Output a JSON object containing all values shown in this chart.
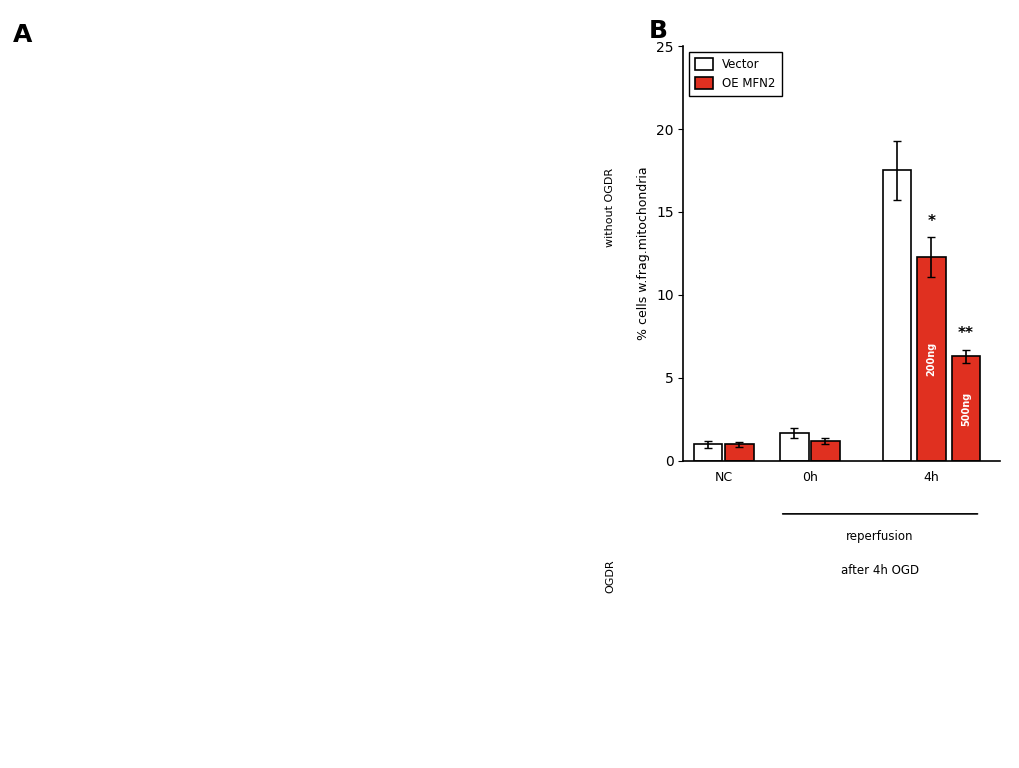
{
  "panel_B": {
    "groups": [
      "NC",
      "0h",
      "4h"
    ],
    "vector_values": [
      1.0,
      1.7,
      17.5
    ],
    "vector_errors": [
      0.2,
      0.3,
      1.8
    ],
    "oe_values": [
      1.0,
      1.2
    ],
    "oe_errors": [
      0.15,
      0.2
    ],
    "oe_200ng_value": 12.3,
    "oe_200ng_error": 1.2,
    "oe_500ng_value": 6.3,
    "oe_500ng_error": 0.4,
    "ylabel": "% cells w.frag.mitochondria",
    "ylim": [
      0,
      25
    ],
    "yticks": [
      0,
      5,
      10,
      15,
      20,
      25
    ],
    "bar_width": 0.35,
    "vector_color": "#ffffff",
    "oe_color": "#e03020",
    "edge_color": "#000000",
    "legend_vector": "Vector",
    "legend_oe": "OE MFN2",
    "significance_200ng": "*",
    "significance_500ng": "**",
    "bracket_label_line1": "reperfusion",
    "bracket_label_line2": "after 4h OGD",
    "label_200ng": "200ng",
    "label_500ng": "500ng",
    "panel_label": "B"
  }
}
